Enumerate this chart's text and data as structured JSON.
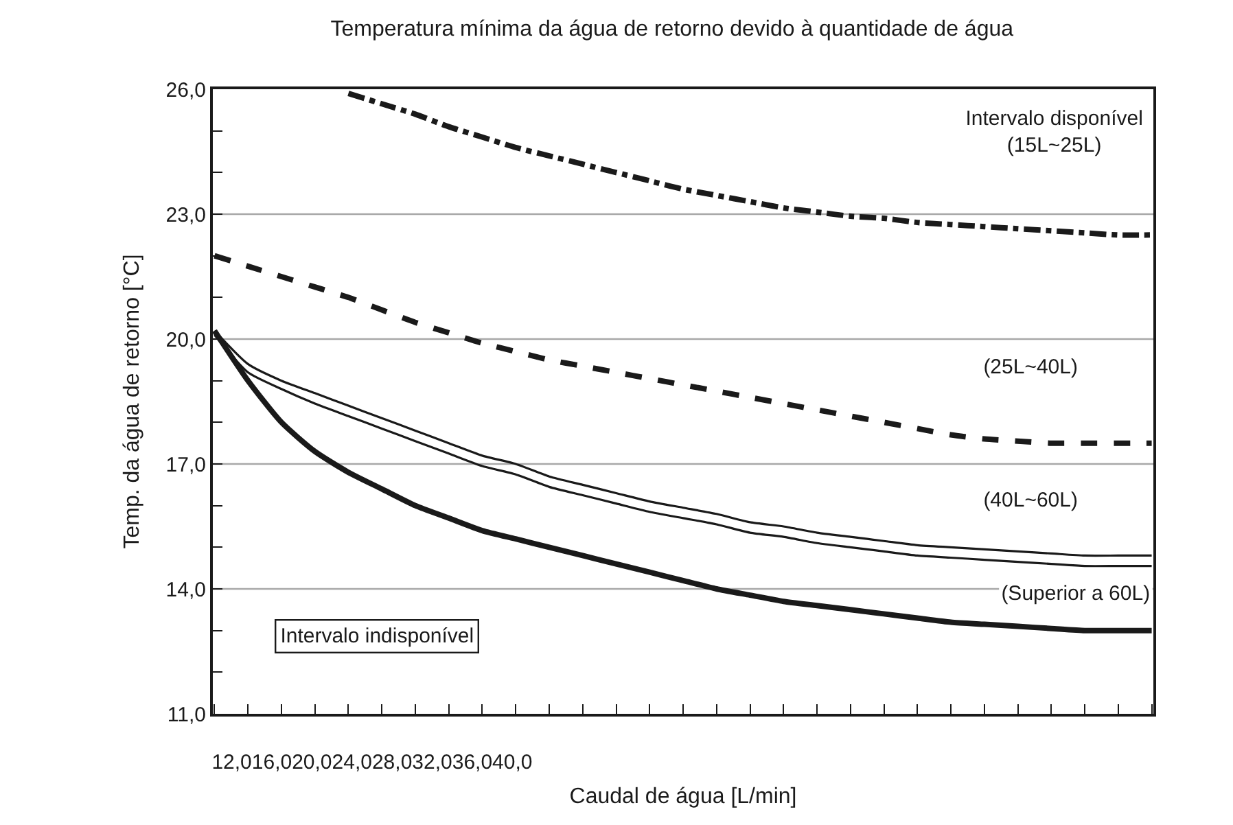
{
  "chart_data": {
    "type": "line",
    "title": "Temperatura mínima da água de retorno devido à quantidade de água",
    "xlabel": "Caudal de água [L/min]",
    "ylabel": "Temp. da água de retorno [°C]",
    "categories": [
      null,
      null,
      null,
      null,
      null,
      null,
      null,
      null,
      null,
      null,
      null,
      null,
      null,
      null,
      null,
      null,
      null,
      null,
      null,
      null,
      null,
      null,
      null,
      null,
      null,
      null,
      null,
      null,
      null
    ],
    "series": [
      {
        "color": "#1a1a1a",
        "line_style": "dashdot",
        "values": [
          null,
          null,
          null,
          null,
          25.9,
          25.65,
          25.4,
          25.1,
          24.85,
          24.6,
          24.4,
          24.2,
          24.0,
          23.8,
          23.6,
          23.45,
          23.3,
          23.15,
          23.05,
          22.95,
          22.9,
          22.8,
          22.75,
          22.7,
          22.65,
          22.6,
          22.55,
          22.5,
          22.5
        ]
      },
      {
        "color": "#1a1a1a",
        "line_style": "dashed",
        "values": [
          22.0,
          21.75,
          21.5,
          21.25,
          21.0,
          20.7,
          20.4,
          20.15,
          19.9,
          19.7,
          19.5,
          19.35,
          19.2,
          19.05,
          18.9,
          18.75,
          18.6,
          18.45,
          18.3,
          18.15,
          18.0,
          17.85,
          17.7,
          17.6,
          17.55,
          17.5,
          17.5,
          17.5,
          17.5
        ]
      },
      {
        "color": "#1a1a1a",
        "line_style": "solid",
        "values": [
          20.2,
          19.4,
          19.0,
          18.7,
          18.4,
          18.1,
          17.8,
          17.5,
          17.2,
          17.0,
          16.7,
          16.5,
          16.3,
          16.1,
          15.95,
          15.8,
          15.6,
          15.5,
          15.35,
          15.25,
          15.15,
          15.05,
          15.0,
          14.95,
          14.9,
          14.85,
          14.8,
          14.8,
          14.8
        ]
      },
      {
        "color": "#1a1a1a",
        "line_style": "solid",
        "values": [
          20.1,
          19.2,
          18.8,
          18.45,
          18.15,
          17.85,
          17.55,
          17.25,
          16.95,
          16.75,
          16.45,
          16.25,
          16.05,
          15.85,
          15.7,
          15.55,
          15.35,
          15.25,
          15.1,
          15.0,
          14.9,
          14.8,
          14.75,
          14.7,
          14.65,
          14.6,
          14.55,
          14.55,
          14.55
        ]
      },
      {
        "color": "#1a1a1a",
        "line_style": "solid",
        "values": [
          20.2,
          19.0,
          18.0,
          17.3,
          16.8,
          16.4,
          16.0,
          15.7,
          15.4,
          15.2,
          15.0,
          14.8,
          14.6,
          14.4,
          14.2,
          14.0,
          13.85,
          13.7,
          13.6,
          13.5,
          13.4,
          13.3,
          13.2,
          13.15,
          13.1,
          13.05,
          13.0,
          13.0,
          13.0
        ]
      }
    ],
    "ylim": [
      11,
      26
    ],
    "yticks": [
      {
        "value": 11,
        "label": "11,0"
      },
      {
        "value": 12,
        "label": null
      },
      {
        "value": 13,
        "label": null
      },
      {
        "value": 14,
        "label": "14,0"
      },
      {
        "value": 15,
        "label": null
      },
      {
        "value": 16,
        "label": null
      },
      {
        "value": 17,
        "label": "17,0"
      },
      {
        "value": 18,
        "label": null
      },
      {
        "value": 19,
        "label": null
      },
      {
        "value": 20,
        "label": "20,0"
      },
      {
        "value": 21,
        "label": null
      },
      {
        "value": 22,
        "label": null
      },
      {
        "value": 23,
        "label": "23,0"
      },
      {
        "value": 24,
        "label": null
      },
      {
        "value": 25,
        "label": null
      },
      {
        "value": 26,
        "label": "26,0"
      }
    ],
    "grid": "y",
    "marker": "none",
    "annotations": [
      "Intervalo disponível\n(15L~25L)",
      "(25L~40L)",
      "(40L~60L)",
      "(Superior a 60L)",
      "Intervalo indisponível",
      "12,016,020,024,028,032,036,040,0"
    ]
  }
}
